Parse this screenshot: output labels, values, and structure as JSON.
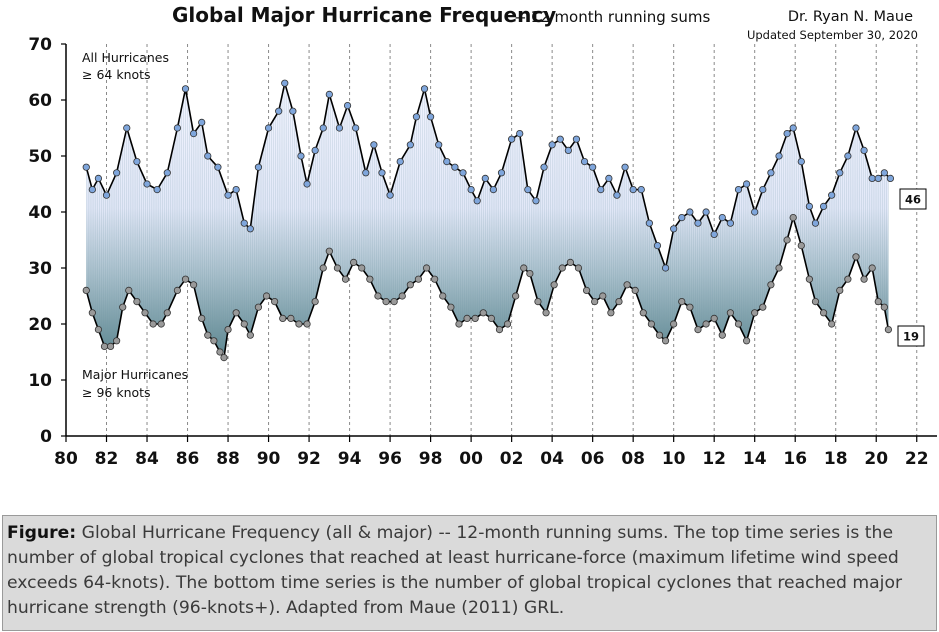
{
  "chart_data": {
    "type": "line",
    "title": "Global Major Hurricane Frequency",
    "subtitle": "-- 12 month running sums",
    "author": "Dr. Ryan N. Maue",
    "updated": "Updated September 30, 2020",
    "xlabel": "",
    "ylabel": "",
    "xlim": [
      1980,
      2023
    ],
    "ylim": [
      0,
      70
    ],
    "x_ticks": [
      1980,
      1982,
      1984,
      1986,
      1988,
      1990,
      1992,
      1994,
      1996,
      1998,
      2000,
      2002,
      2004,
      2006,
      2008,
      2010,
      2012,
      2014,
      2016,
      2018,
      2020,
      2022
    ],
    "x_tick_labels": [
      "80",
      "82",
      "84",
      "86",
      "88",
      "90",
      "92",
      "94",
      "96",
      "98",
      "00",
      "02",
      "04",
      "06",
      "08",
      "10",
      "12",
      "14",
      "16",
      "18",
      "20",
      "22"
    ],
    "y_ticks": [
      0,
      10,
      20,
      30,
      40,
      50,
      60,
      70
    ],
    "y_tick_labels": [
      "0",
      "10",
      "20",
      "30",
      "40",
      "50",
      "60",
      "70"
    ],
    "grid": "vertical dashed",
    "series": [
      {
        "name": "All Hurricanes ≥ 64 knots",
        "label_line1": "All Hurricanes",
        "label_line2": "≥ 64 knots",
        "end_value_label": "46",
        "color": "#7fa6dc",
        "points": [
          [
            1981.0,
            48
          ],
          [
            1981.3,
            44
          ],
          [
            1981.6,
            46
          ],
          [
            1982.0,
            43
          ],
          [
            1982.5,
            47
          ],
          [
            1983.0,
            55
          ],
          [
            1983.5,
            49
          ],
          [
            1984.0,
            45
          ],
          [
            1984.5,
            44
          ],
          [
            1985.0,
            47
          ],
          [
            1985.5,
            55
          ],
          [
            1985.9,
            62
          ],
          [
            1986.3,
            54
          ],
          [
            1986.7,
            56
          ],
          [
            1987.0,
            50
          ],
          [
            1987.5,
            48
          ],
          [
            1988.0,
            43
          ],
          [
            1988.4,
            44
          ],
          [
            1988.8,
            38
          ],
          [
            1989.1,
            37
          ],
          [
            1989.5,
            48
          ],
          [
            1990.0,
            55
          ],
          [
            1990.5,
            58
          ],
          [
            1990.8,
            63
          ],
          [
            1991.2,
            58
          ],
          [
            1991.6,
            50
          ],
          [
            1991.9,
            45
          ],
          [
            1992.3,
            51
          ],
          [
            1992.7,
            55
          ],
          [
            1993.0,
            61
          ],
          [
            1993.5,
            55
          ],
          [
            1993.9,
            59
          ],
          [
            1994.3,
            55
          ],
          [
            1994.8,
            47
          ],
          [
            1995.2,
            52
          ],
          [
            1995.6,
            47
          ],
          [
            1996.0,
            43
          ],
          [
            1996.5,
            49
          ],
          [
            1997.0,
            52
          ],
          [
            1997.3,
            57
          ],
          [
            1997.7,
            62
          ],
          [
            1998.0,
            57
          ],
          [
            1998.4,
            52
          ],
          [
            1998.8,
            49
          ],
          [
            1999.2,
            48
          ],
          [
            1999.6,
            47
          ],
          [
            2000.0,
            44
          ],
          [
            2000.3,
            42
          ],
          [
            2000.7,
            46
          ],
          [
            2001.1,
            44
          ],
          [
            2001.5,
            47
          ],
          [
            2002.0,
            53
          ],
          [
            2002.4,
            54
          ],
          [
            2002.8,
            44
          ],
          [
            2003.2,
            42
          ],
          [
            2003.6,
            48
          ],
          [
            2004.0,
            52
          ],
          [
            2004.4,
            53
          ],
          [
            2004.8,
            51
          ],
          [
            2005.2,
            53
          ],
          [
            2005.6,
            49
          ],
          [
            2006.0,
            48
          ],
          [
            2006.4,
            44
          ],
          [
            2006.8,
            46
          ],
          [
            2007.2,
            43
          ],
          [
            2007.6,
            48
          ],
          [
            2008.0,
            44
          ],
          [
            2008.4,
            44
          ],
          [
            2008.8,
            38
          ],
          [
            2009.2,
            34
          ],
          [
            2009.6,
            30
          ],
          [
            2010.0,
            37
          ],
          [
            2010.4,
            39
          ],
          [
            2010.8,
            40
          ],
          [
            2011.2,
            38
          ],
          [
            2011.6,
            40
          ],
          [
            2012.0,
            36
          ],
          [
            2012.4,
            39
          ],
          [
            2012.8,
            38
          ],
          [
            2013.2,
            44
          ],
          [
            2013.6,
            45
          ],
          [
            2014.0,
            40
          ],
          [
            2014.4,
            44
          ],
          [
            2014.8,
            47
          ],
          [
            2015.2,
            50
          ],
          [
            2015.6,
            54
          ],
          [
            2015.9,
            55
          ],
          [
            2016.3,
            49
          ],
          [
            2016.7,
            41
          ],
          [
            2017.0,
            38
          ],
          [
            2017.4,
            41
          ],
          [
            2017.8,
            43
          ],
          [
            2018.2,
            47
          ],
          [
            2018.6,
            50
          ],
          [
            2019.0,
            55
          ],
          [
            2019.4,
            51
          ],
          [
            2019.8,
            46
          ],
          [
            2020.1,
            46
          ],
          [
            2020.4,
            47
          ],
          [
            2020.7,
            46
          ]
        ]
      },
      {
        "name": "Major Hurricanes ≥ 96 knots",
        "label_line1": "Major Hurricanes",
        "label_line2": "≥ 96 knots",
        "end_value_label": "19",
        "color": "#9a9a9a",
        "points": [
          [
            1981.0,
            26
          ],
          [
            1981.3,
            22
          ],
          [
            1981.6,
            19
          ],
          [
            1981.9,
            16
          ],
          [
            1982.2,
            16
          ],
          [
            1982.5,
            17
          ],
          [
            1982.8,
            23
          ],
          [
            1983.1,
            26
          ],
          [
            1983.5,
            24
          ],
          [
            1983.9,
            22
          ],
          [
            1984.3,
            20
          ],
          [
            1984.7,
            20
          ],
          [
            1985.0,
            22
          ],
          [
            1985.5,
            26
          ],
          [
            1985.9,
            28
          ],
          [
            1986.3,
            27
          ],
          [
            1986.7,
            21
          ],
          [
            1987.0,
            18
          ],
          [
            1987.3,
            17
          ],
          [
            1987.6,
            15
          ],
          [
            1987.8,
            14
          ],
          [
            1988.0,
            19
          ],
          [
            1988.4,
            22
          ],
          [
            1988.8,
            20
          ],
          [
            1989.1,
            18
          ],
          [
            1989.5,
            23
          ],
          [
            1989.9,
            25
          ],
          [
            1990.3,
            24
          ],
          [
            1990.7,
            21
          ],
          [
            1991.1,
            21
          ],
          [
            1991.5,
            20
          ],
          [
            1991.9,
            20
          ],
          [
            1992.3,
            24
          ],
          [
            1992.7,
            30
          ],
          [
            1993.0,
            33
          ],
          [
            1993.4,
            30
          ],
          [
            1993.8,
            28
          ],
          [
            1994.2,
            31
          ],
          [
            1994.6,
            30
          ],
          [
            1995.0,
            28
          ],
          [
            1995.4,
            25
          ],
          [
            1995.8,
            24
          ],
          [
            1996.2,
            24
          ],
          [
            1996.6,
            25
          ],
          [
            1997.0,
            27
          ],
          [
            1997.4,
            28
          ],
          [
            1997.8,
            30
          ],
          [
            1998.2,
            28
          ],
          [
            1998.6,
            25
          ],
          [
            1999.0,
            23
          ],
          [
            1999.4,
            20
          ],
          [
            1999.8,
            21
          ],
          [
            2000.2,
            21
          ],
          [
            2000.6,
            22
          ],
          [
            2001.0,
            21
          ],
          [
            2001.4,
            19
          ],
          [
            2001.8,
            20
          ],
          [
            2002.2,
            25
          ],
          [
            2002.6,
            30
          ],
          [
            2002.9,
            29
          ],
          [
            2003.3,
            24
          ],
          [
            2003.7,
            22
          ],
          [
            2004.1,
            27
          ],
          [
            2004.5,
            30
          ],
          [
            2004.9,
            31
          ],
          [
            2005.3,
            30
          ],
          [
            2005.7,
            26
          ],
          [
            2006.1,
            24
          ],
          [
            2006.5,
            25
          ],
          [
            2006.9,
            22
          ],
          [
            2007.3,
            24
          ],
          [
            2007.7,
            27
          ],
          [
            2008.1,
            26
          ],
          [
            2008.5,
            22
          ],
          [
            2008.9,
            20
          ],
          [
            2009.3,
            18
          ],
          [
            2009.6,
            17
          ],
          [
            2010.0,
            20
          ],
          [
            2010.4,
            24
          ],
          [
            2010.8,
            23
          ],
          [
            2011.2,
            19
          ],
          [
            2011.6,
            20
          ],
          [
            2012.0,
            21
          ],
          [
            2012.4,
            18
          ],
          [
            2012.8,
            22
          ],
          [
            2013.2,
            20
          ],
          [
            2013.6,
            17
          ],
          [
            2014.0,
            22
          ],
          [
            2014.4,
            23
          ],
          [
            2014.8,
            27
          ],
          [
            2015.2,
            30
          ],
          [
            2015.6,
            35
          ],
          [
            2015.9,
            39
          ],
          [
            2016.3,
            34
          ],
          [
            2016.7,
            28
          ],
          [
            2017.0,
            24
          ],
          [
            2017.4,
            22
          ],
          [
            2017.8,
            20
          ],
          [
            2018.2,
            26
          ],
          [
            2018.6,
            28
          ],
          [
            2019.0,
            32
          ],
          [
            2019.4,
            28
          ],
          [
            2019.8,
            30
          ],
          [
            2020.1,
            24
          ],
          [
            2020.4,
            23
          ],
          [
            2020.6,
            19
          ]
        ]
      }
    ]
  },
  "figure_caption": {
    "lead": "Figure:",
    "text": "Global Hurricane Frequency (all & major) -- 12-month running sums. The top time series is the number of global tropical cyclones that reached at least hurricane-force (maximum lifetime wind speed exceeds 64-knots). The bottom time series is the number of global tropical cyclones that reached major hurricane strength (96-knots+). Adapted from Maue (2011) GRL."
  }
}
